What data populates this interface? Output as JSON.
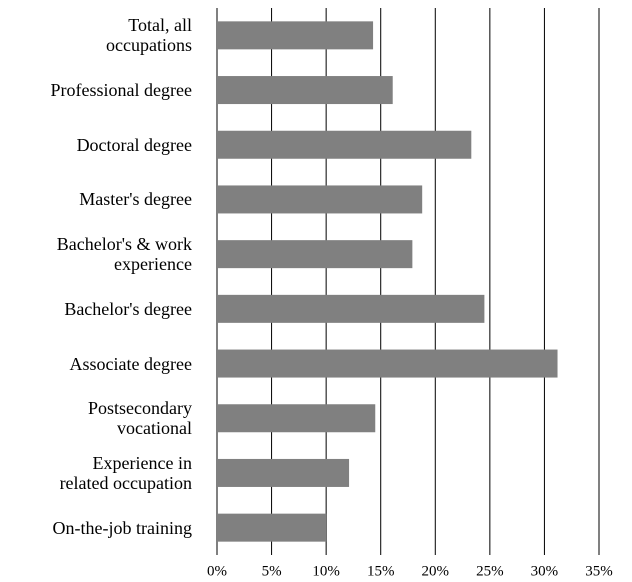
{
  "chart_data": {
    "type": "bar",
    "orientation": "horizontal",
    "categories": [
      "Total, all\noccupations",
      "Professional degree",
      "Doctoral degree",
      "Master's degree",
      "Bachelor's & work\nexperience",
      "Bachelor's degree",
      "Associate degree",
      "Postsecondary\nvocational",
      "Experience in\nrelated occupation",
      "On-the-job training"
    ],
    "values": [
      14.3,
      16.1,
      23.3,
      18.8,
      17.9,
      24.5,
      31.2,
      14.5,
      12.1,
      10.0
    ],
    "color": "#808080",
    "xlim": [
      0,
      35
    ],
    "xticks": [
      {
        "value": 0,
        "label": "0%"
      },
      {
        "value": 5,
        "label": "5%"
      },
      {
        "value": 10,
        "label": "10%"
      },
      {
        "value": 15,
        "label": "15%"
      },
      {
        "value": 20,
        "label": "20%"
      },
      {
        "value": 25,
        "label": "25%"
      },
      {
        "value": 30,
        "label": "30%"
      },
      {
        "value": 35,
        "label": "35%"
      }
    ],
    "grid": true
  }
}
